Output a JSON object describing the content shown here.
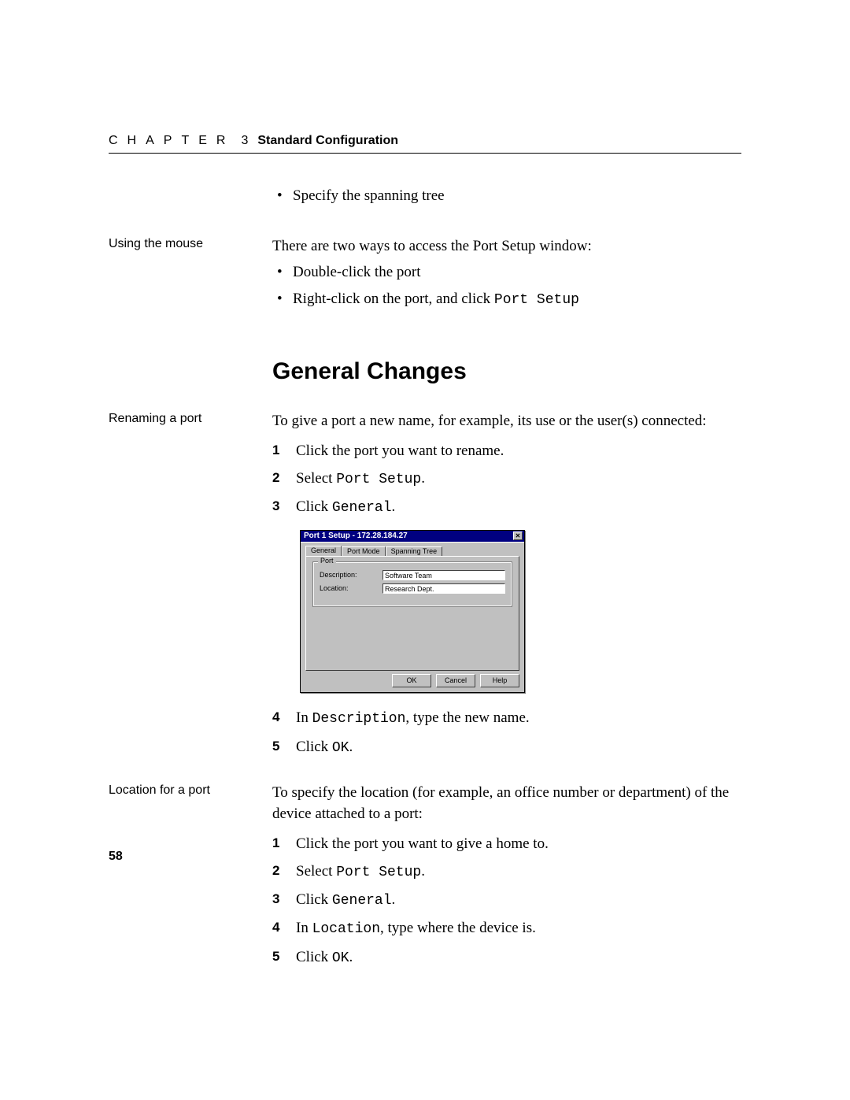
{
  "header": {
    "chapter_word": "CHAPTER",
    "chapter_num": "3",
    "title": "Standard Configuration"
  },
  "intro_bullet": "Specify the spanning tree",
  "mouse_section": {
    "margin_label": "Using the mouse",
    "intro": "There are two ways to access the Port Setup window:",
    "bullets": {
      "b1": "Double-click the port",
      "b2_pre": "Right-click on the port, and click ",
      "b2_mono": "Port Setup"
    }
  },
  "section_heading": "General Changes",
  "rename_section": {
    "margin_label": "Renaming a port",
    "intro": "To give a port a new name, for example, its use or the user(s) connected:",
    "steps": {
      "s1": "Click the port you want to rename.",
      "s2_pre": "Select ",
      "s2_mono": "Port Setup",
      "s2_post": ".",
      "s3_pre": "Click ",
      "s3_mono": "General",
      "s3_post": ".",
      "s4_pre": "In ",
      "s4_mono": "Description",
      "s4_post": ", type the new name.",
      "s5_pre": "Click ",
      "s5_mono": "OK",
      "s5_post": "."
    }
  },
  "location_section": {
    "margin_label": "Location for a port",
    "intro": "To specify the location (for example, an office number or department) of the device attached to a port:",
    "steps": {
      "s1": "Click the port you want to give a home to.",
      "s2_pre": "Select ",
      "s2_mono": "Port Setup",
      "s2_post": ".",
      "s3_pre": "Click ",
      "s3_mono": "General",
      "s3_post": ".",
      "s4_pre": "In ",
      "s4_mono": "Location",
      "s4_post": ", type where the device is.",
      "s5_pre": "Click ",
      "s5_mono": "OK",
      "s5_post": "."
    }
  },
  "dialog": {
    "title": "Port 1 Setup - 172.28.184.27",
    "close_glyph": "✕",
    "tabs": {
      "t1": "General",
      "t2": "Port Mode",
      "t3": "Spanning Tree"
    },
    "group_legend": "Port",
    "desc_label": "Description:",
    "desc_value": "Software Team",
    "loc_label": "Location:",
    "loc_value": "Research Dept.",
    "buttons": {
      "ok": "OK",
      "cancel": "Cancel",
      "help": "Help"
    },
    "colors": {
      "titlebar_bg": "#000080",
      "window_bg": "#c0c0c0",
      "field_bg": "#ffffff"
    }
  },
  "page_number": "58"
}
